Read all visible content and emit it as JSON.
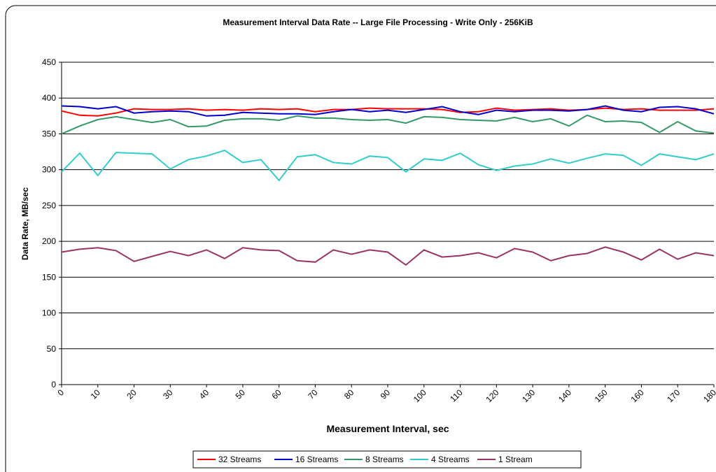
{
  "chart_data": {
    "type": "line",
    "title": "Measurement Interval Data Rate -- Large File Processing - Write Only - 256KiB",
    "x_label": "Measurement Interval, sec",
    "y_label": "Data Rate, MB/sec",
    "x": [
      0,
      5,
      10,
      15,
      20,
      25,
      30,
      35,
      40,
      45,
      50,
      55,
      60,
      65,
      70,
      75,
      80,
      85,
      90,
      95,
      100,
      105,
      110,
      115,
      120,
      125,
      130,
      135,
      140,
      145,
      150,
      155,
      160,
      165,
      170,
      175,
      180
    ],
    "series": [
      {
        "name": "32 Streams",
        "color": "#ff0000",
        "values": [
          382,
          376,
          375,
          379,
          385,
          384,
          384,
          385,
          383,
          384,
          383,
          385,
          384,
          385,
          381,
          384,
          384,
          386,
          385,
          385,
          385,
          384,
          380,
          381,
          386,
          383,
          384,
          385,
          383,
          384,
          386,
          384,
          385,
          383,
          383,
          383,
          385
        ]
      },
      {
        "name": "16 Streams",
        "color": "#0000cc",
        "values": [
          389,
          388,
          385,
          388,
          379,
          381,
          382,
          381,
          375,
          376,
          380,
          379,
          378,
          378,
          377,
          381,
          384,
          381,
          383,
          380,
          384,
          388,
          381,
          377,
          383,
          381,
          383,
          383,
          382,
          384,
          389,
          383,
          381,
          387,
          388,
          385,
          378
        ]
      },
      {
        "name": "8 Streams",
        "color": "#339966",
        "values": [
          350,
          361,
          370,
          374,
          370,
          366,
          370,
          360,
          361,
          369,
          371,
          371,
          369,
          375,
          372,
          372,
          370,
          369,
          370,
          365,
          374,
          373,
          370,
          369,
          368,
          373,
          367,
          371,
          361,
          376,
          367,
          368,
          366,
          352,
          367,
          354,
          351
        ]
      },
      {
        "name": "4 Streams",
        "color": "#33cccc",
        "values": [
          297,
          323,
          292,
          324,
          323,
          322,
          301,
          314,
          319,
          327,
          310,
          314,
          285,
          318,
          321,
          310,
          308,
          319,
          317,
          297,
          315,
          313,
          323,
          307,
          299,
          305,
          308,
          315,
          309,
          316,
          322,
          320,
          306,
          322,
          318,
          314,
          322
        ]
      },
      {
        "name": "1 Stream",
        "color": "#993366",
        "values": [
          185,
          189,
          191,
          187,
          172,
          179,
          186,
          180,
          188,
          176,
          191,
          188,
          187,
          173,
          171,
          188,
          182,
          188,
          185,
          167,
          188,
          178,
          180,
          184,
          177,
          190,
          185,
          173,
          180,
          183,
          192,
          185,
          174,
          189,
          175,
          184,
          180
        ]
      }
    ],
    "xlim": [
      0,
      180
    ],
    "xticks": [
      0,
      10,
      20,
      30,
      40,
      50,
      60,
      70,
      80,
      90,
      100,
      110,
      120,
      130,
      140,
      150,
      160,
      170,
      180
    ],
    "ylim": [
      0,
      450
    ],
    "yticks": [
      0,
      50,
      100,
      150,
      200,
      250,
      300,
      350,
      400,
      450
    ],
    "grid": true,
    "legend": "bottom"
  }
}
